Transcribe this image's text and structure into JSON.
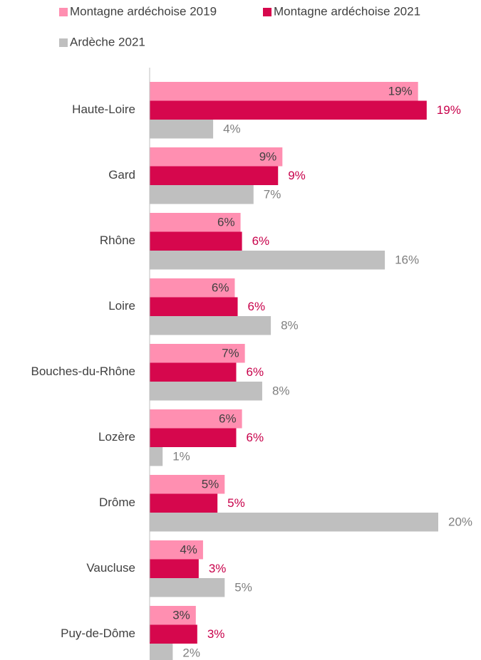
{
  "chart_data": {
    "type": "hbar",
    "categories": [
      "Haute-Loire",
      "Gard",
      "Rhône",
      "Loire",
      "Bouches-du-Rhône",
      "Lozère",
      "Drôme",
      "Vaucluse",
      "Puy-de-Dôme"
    ],
    "series": [
      {
        "name": "Montagne ardéchoise 2019",
        "color": "#ff8fb1",
        "values": [
          18.6,
          9.2,
          6.3,
          5.9,
          6.6,
          6.4,
          5.2,
          3.7,
          3.2
        ],
        "value_labels": [
          "19%",
          "9%",
          "6%",
          "6%",
          "7%",
          "6%",
          "5%",
          "4%",
          "3%"
        ]
      },
      {
        "name": "Montagne ardéchoise 2021",
        "color": "#d6074d",
        "values": [
          19.2,
          8.9,
          6.4,
          6.1,
          6.0,
          6.0,
          4.7,
          3.4,
          3.3
        ],
        "value_labels": [
          "19%",
          "9%",
          "6%",
          "6%",
          "6%",
          "6%",
          "5%",
          "3%",
          "3%"
        ]
      },
      {
        "name": "Ardèche 2021",
        "color": "#bfbfbf",
        "values": [
          4.4,
          7.2,
          16.3,
          8.4,
          7.8,
          0.9,
          20,
          5.2,
          1.6
        ],
        "value_labels": [
          "4%",
          "7%",
          "16%",
          "8%",
          "8%",
          "1%",
          "20%",
          "5%",
          "2%"
        ]
      }
    ]
  }
}
